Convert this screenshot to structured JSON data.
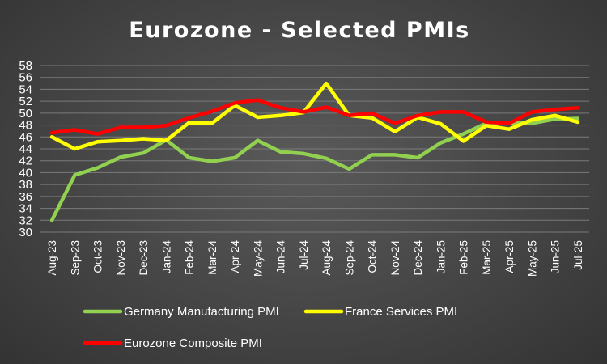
{
  "chart_data": {
    "type": "line",
    "title": "Eurozone - Selected PMIs",
    "xlabel": "",
    "ylabel": "",
    "ylim": [
      30,
      58
    ],
    "yticks": [
      30,
      32,
      34,
      36,
      38,
      40,
      42,
      44,
      46,
      48,
      50,
      52,
      54,
      56,
      58
    ],
    "grid": true,
    "legend_position": "bottom",
    "categories": [
      "Aug-23",
      "Sep-23",
      "Oct-23",
      "Nov-23",
      "Dec-23",
      "Jan-24",
      "Feb-24",
      "Mar-24",
      "Apr-24",
      "May-24",
      "Jun-24",
      "Jul-24",
      "Aug-24",
      "Sep-24",
      "Oct-24",
      "Nov-24",
      "Dec-24",
      "Jan-25",
      "Feb-25",
      "Mar-25",
      "Apr-25",
      "May-25",
      "Jun-25",
      "Jul-25"
    ],
    "series": [
      {
        "name": "Germany Manufacturing PMI",
        "color": "#92d050",
        "values": [
          32.0,
          39.6,
          40.8,
          42.6,
          43.3,
          45.5,
          42.5,
          41.9,
          42.5,
          45.4,
          43.5,
          43.2,
          42.4,
          40.6,
          43.0,
          43.0,
          42.5,
          45.0,
          46.5,
          48.3,
          48.4,
          48.3,
          49.0,
          49.1
        ]
      },
      {
        "name": "France Services PMI",
        "color": "#ffff00",
        "values": [
          46.0,
          44.0,
          45.2,
          45.4,
          45.7,
          45.4,
          48.4,
          48.3,
          51.3,
          49.3,
          49.6,
          50.1,
          55.0,
          49.6,
          49.2,
          46.9,
          49.3,
          48.2,
          45.3,
          47.9,
          47.3,
          48.9,
          49.6,
          48.5
        ]
      },
      {
        "name": "Eurozone Composite PMI",
        "color": "#ff0000",
        "values": [
          46.7,
          47.2,
          46.5,
          47.6,
          47.6,
          47.9,
          49.2,
          50.3,
          51.7,
          52.2,
          50.9,
          50.2,
          51.0,
          49.6,
          50.0,
          48.3,
          49.6,
          50.2,
          50.2,
          48.5,
          48.3,
          50.2,
          50.6,
          50.9
        ]
      }
    ]
  }
}
